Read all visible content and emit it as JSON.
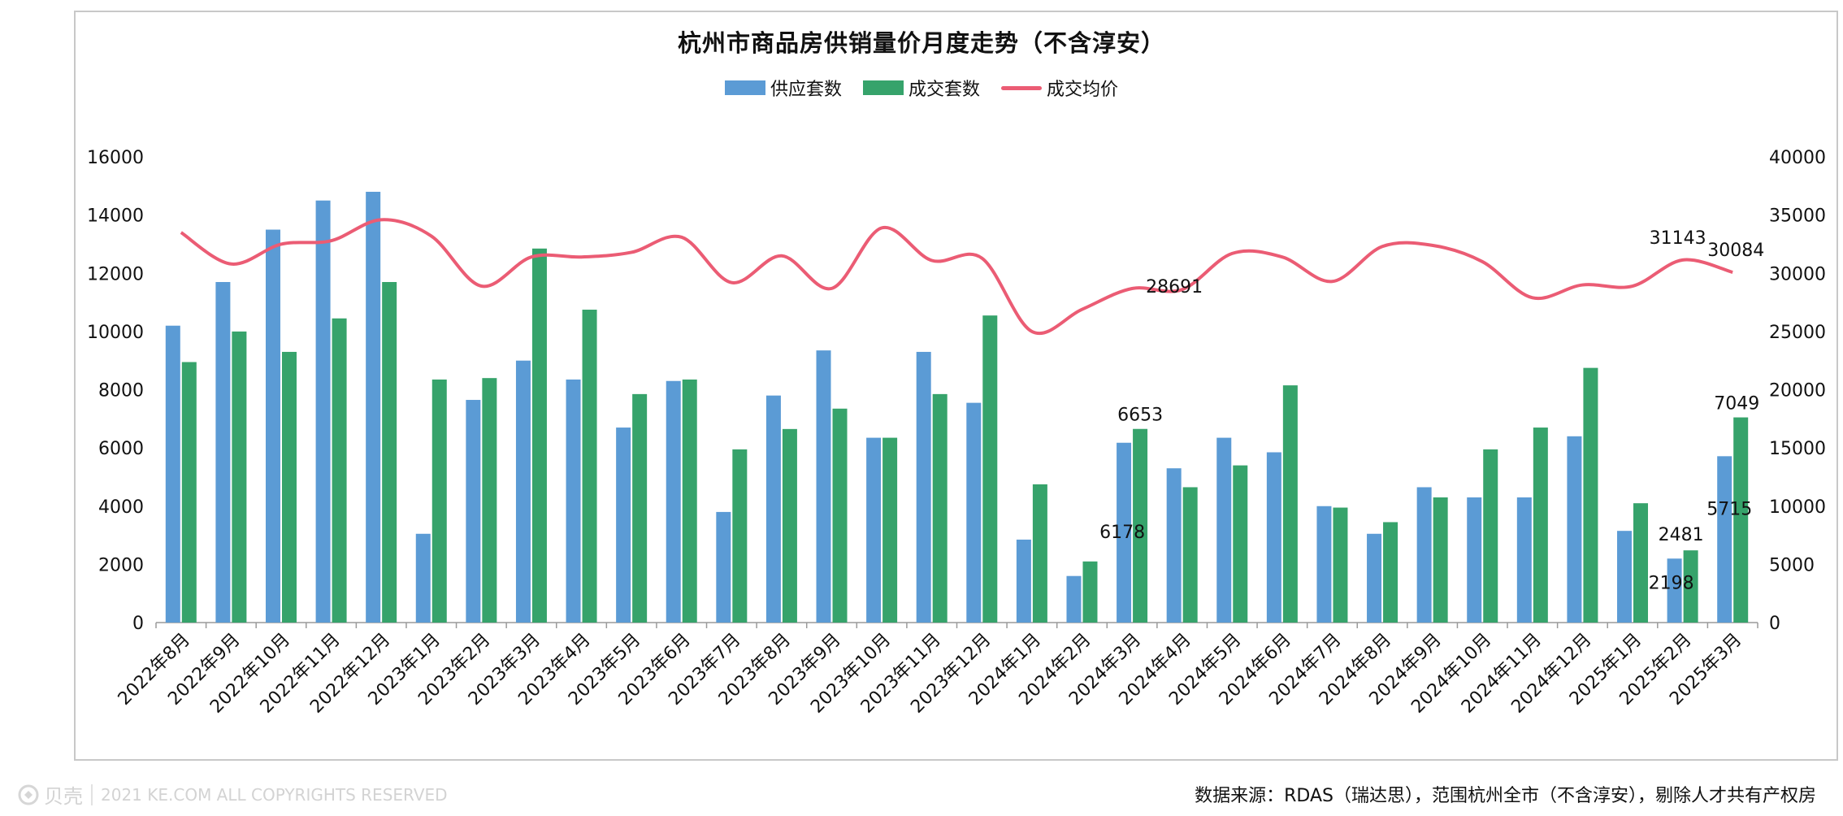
{
  "colors": {
    "supply": "#5b9bd5",
    "deal": "#36a36b",
    "price": "#eb5c74",
    "axis": "#9a9a9a"
  },
  "footer": {
    "source": "数据来源：RDAS（瑞达思），范围杭州全市（不含淳安），剔除人才共有产权房",
    "copyright": "2021 KE.COM ALL COPYRIGHTS  RESERVED",
    "logo_text": "贝壳",
    "logo_icon": "shell-logo-icon"
  },
  "chart_data": {
    "type": "bar",
    "title": "杭州市商品房供销量价月度走势（不含淳安）",
    "legend_position": "top",
    "grid": false,
    "categories": [
      "2022年8月",
      "2022年9月",
      "2022年10月",
      "2022年11月",
      "2022年12月",
      "2023年1月",
      "2023年2月",
      "2023年3月",
      "2023年4月",
      "2023年5月",
      "2023年6月",
      "2023年7月",
      "2023年8月",
      "2023年9月",
      "2023年10月",
      "2023年11月",
      "2023年12月",
      "2024年1月",
      "2024年2月",
      "2024年3月",
      "2024年4月",
      "2024年5月",
      "2024年6月",
      "2024年7月",
      "2024年8月",
      "2024年9月",
      "2024年10月",
      "2024年11月",
      "2024年12月",
      "2025年1月",
      "2025年2月",
      "2025年3月"
    ],
    "y_left": {
      "min": 0,
      "max": 16000,
      "ticks": [
        0,
        2000,
        4000,
        6000,
        8000,
        10000,
        12000,
        14000,
        16000
      ]
    },
    "y_right": {
      "min": 0,
      "max": 40000,
      "ticks": [
        0,
        5000,
        10000,
        15000,
        20000,
        25000,
        30000,
        35000,
        40000
      ]
    },
    "series": [
      {
        "name": "供应套数",
        "kind": "bar",
        "axis": "left",
        "values": [
          10200,
          11700,
          13500,
          14500,
          14800,
          3050,
          7650,
          9000,
          8350,
          6700,
          8300,
          3800,
          7800,
          9350,
          6350,
          9300,
          7550,
          2850,
          1600,
          6178,
          5300,
          6350,
          5850,
          4000,
          3050,
          4650,
          4300,
          4300,
          6400,
          3150,
          2198,
          5715
        ],
        "labeled_indices": [
          19,
          30,
          31
        ]
      },
      {
        "name": "成交套数",
        "kind": "bar",
        "axis": "left",
        "values": [
          8950,
          10000,
          9300,
          10450,
          11700,
          8350,
          8400,
          12850,
          10750,
          7850,
          8350,
          5950,
          6650,
          7350,
          6350,
          7850,
          10550,
          4750,
          2100,
          6653,
          4650,
          5400,
          8150,
          3950,
          3450,
          4300,
          5950,
          6700,
          8750,
          4100,
          2481,
          7049
        ],
        "labeled_indices": [
          19,
          30,
          31
        ]
      },
      {
        "name": "成交均价",
        "kind": "line",
        "axis": "right",
        "values": [
          33500,
          30800,
          32500,
          32800,
          34600,
          33200,
          28900,
          31400,
          31400,
          31800,
          33100,
          29200,
          31500,
          28700,
          33900,
          31100,
          31300,
          25000,
          26900,
          28691,
          28600,
          31700,
          31400,
          29300,
          32300,
          32400,
          31000,
          27900,
          29000,
          28900,
          31143,
          30084
        ],
        "labeled_indices": [
          19,
          30,
          31
        ]
      }
    ]
  }
}
